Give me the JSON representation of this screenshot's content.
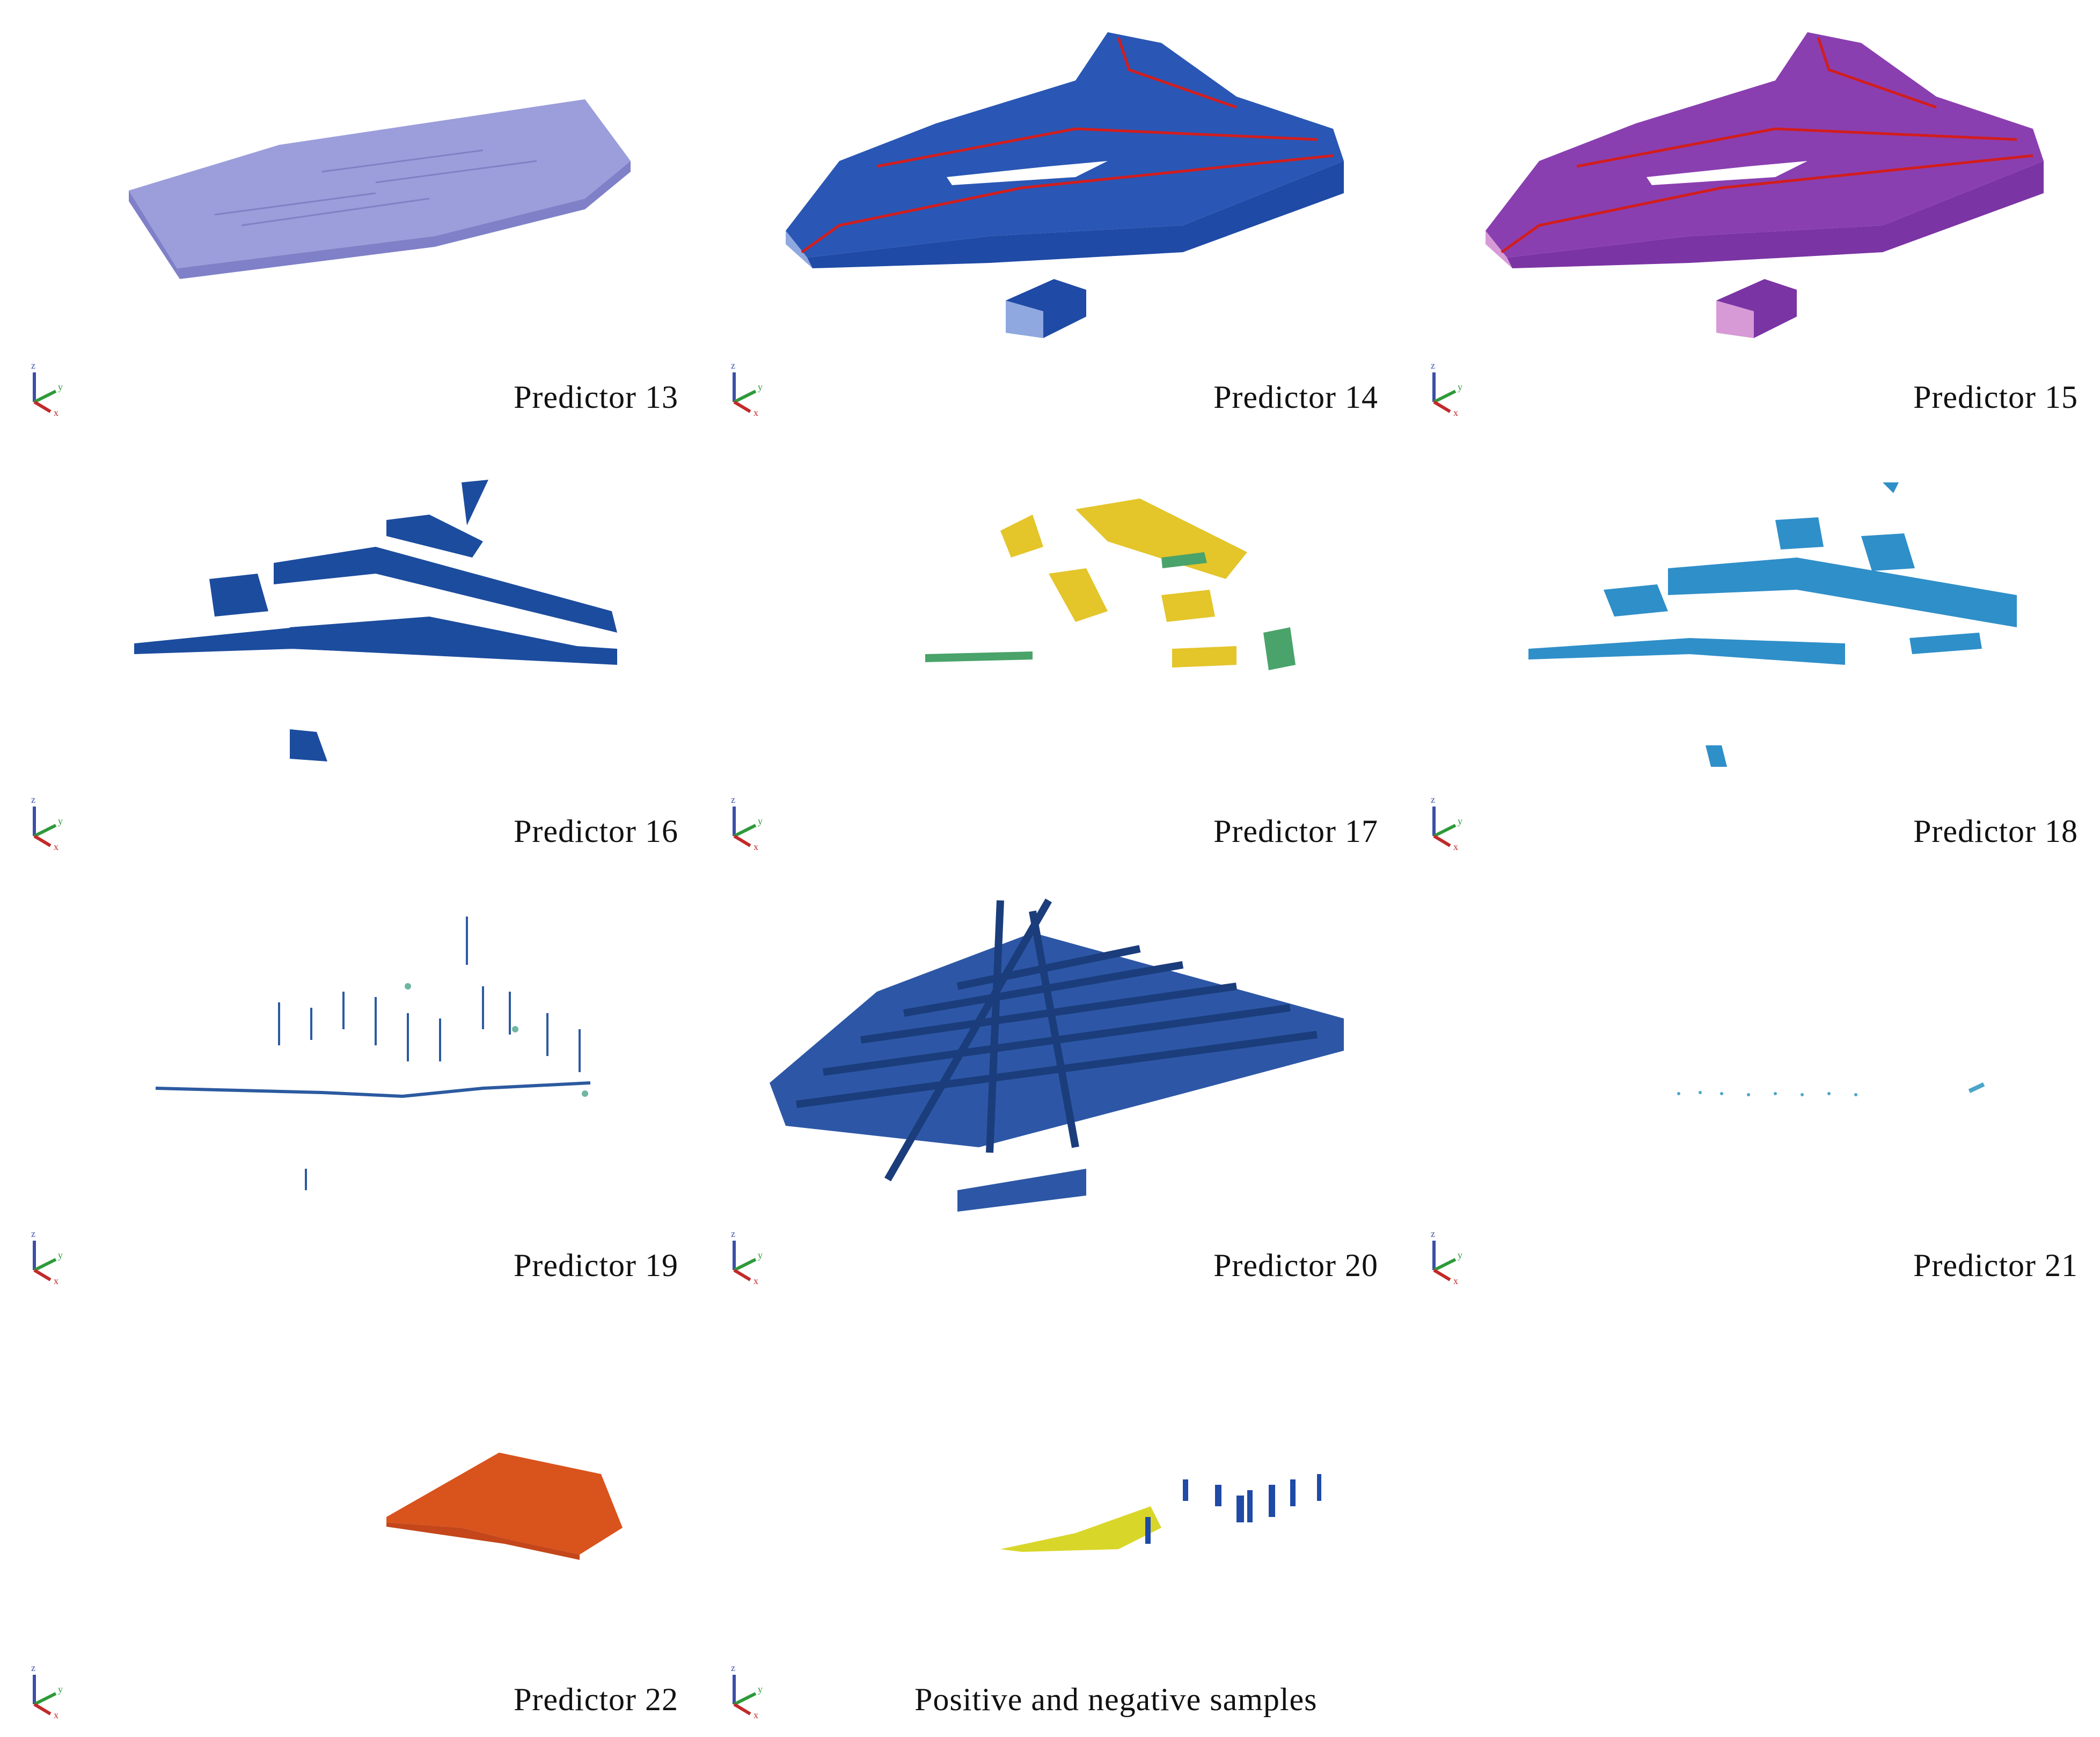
{
  "figure": {
    "panels": [
      {
        "id": "p13",
        "caption": "Predictor 13",
        "render": "slab",
        "colors": {
          "top": "#9c9ddb",
          "side": "#7f80c8",
          "edge": "#6e70b8"
        }
      },
      {
        "id": "p14",
        "caption": "Predictor 14",
        "render": "block",
        "colors": {
          "top": "#2a57b5",
          "side": "#1f4aa6",
          "line": "#d21d1d",
          "hi": "#8fa8e0"
        }
      },
      {
        "id": "p15",
        "caption": "Predictor 15",
        "render": "block",
        "colors": {
          "top": "#8a3fb0",
          "side": "#7b34a4",
          "line": "#d21d1d",
          "hi": "#d79ad6"
        }
      },
      {
        "id": "p16",
        "caption": "Predictor 16",
        "render": "strips",
        "colors": {
          "main": "#1c4c9e",
          "alt": "#173f86"
        }
      },
      {
        "id": "p17",
        "caption": "Predictor 17",
        "render": "patches",
        "colors": {
          "main": "#e4c52a",
          "alt": "#4aa36a"
        }
      },
      {
        "id": "p18",
        "caption": "Predictor 18",
        "render": "strips",
        "colors": {
          "main": "#2f8fc9",
          "alt": "#2577b2"
        }
      },
      {
        "id": "p19",
        "caption": "Predictor 19",
        "render": "points",
        "colors": {
          "main": "#2c5aa0",
          "alt": "#6fb6a2"
        }
      },
      {
        "id": "p20",
        "caption": "Predictor 20",
        "render": "grid",
        "colors": {
          "main": "#2d57a6",
          "alt": "#1b3d7c"
        }
      },
      {
        "id": "p21",
        "caption": "Predictor 21",
        "render": "sparse",
        "colors": {
          "main": "#4aa6c9"
        }
      },
      {
        "id": "p22",
        "caption": "Predictor 22",
        "render": "orange",
        "colors": {
          "main": "#d9531d",
          "alt": "#c4461a"
        }
      },
      {
        "id": "samples",
        "caption": "Positive and negative samples",
        "render": "samples",
        "colors": {
          "main": "#1f4aa6",
          "alt": "#d9d62a"
        }
      }
    ],
    "axis_icon": {
      "z": "z",
      "y": "y",
      "x": "x",
      "colors": {
        "z": "#3b4fa8",
        "y": "#2e9a3a",
        "x": "#c22a2a"
      }
    }
  }
}
